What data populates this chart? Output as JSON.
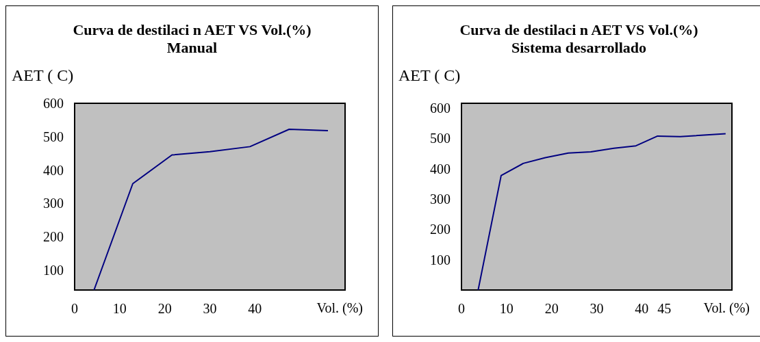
{
  "chart_data": [
    {
      "type": "line",
      "title": "Curva de destilaci  n AET VS Vol.(%)",
      "subtitle": "Manual",
      "ylabel": "AET (   C)",
      "xlabel": "Vol. (%)",
      "xlim": [
        0,
        60
      ],
      "xticks": [
        0,
        10,
        20,
        30,
        40
      ],
      "ylim": [
        40,
        600
      ],
      "yticks": [
        100,
        200,
        300,
        400,
        500,
        600
      ],
      "x": [
        4.3,
        12.9,
        21.6,
        30,
        38.9,
        47.6,
        56.2
      ],
      "series": [
        {
          "color": "#000080",
          "values": [
            40,
            359,
            445,
            455,
            470,
            522,
            518
          ]
        }
      ]
    },
    {
      "type": "line",
      "title": "Curva de destilaci  n AET VS Vol.(%)",
      "subtitle": "Sistema desarrollado",
      "ylabel": "AET (   C)",
      "xlabel": "Vol. (%)",
      "xlim": [
        0,
        60
      ],
      "xticks": [
        0,
        10,
        20,
        30,
        40,
        45
      ],
      "ylim": [
        0,
        615
      ],
      "yticks": [
        100,
        200,
        300,
        400,
        500,
        600
      ],
      "x": [
        3.7,
        8.8,
        13.7,
        18.6,
        23.7,
        28.7,
        33.8,
        38.7,
        43.5,
        48.5,
        58.6
      ],
      "series": [
        {
          "color": "#000080",
          "values": [
            0,
            377,
            417,
            436,
            451,
            455,
            467,
            475,
            507,
            505,
            515
          ]
        }
      ]
    }
  ]
}
